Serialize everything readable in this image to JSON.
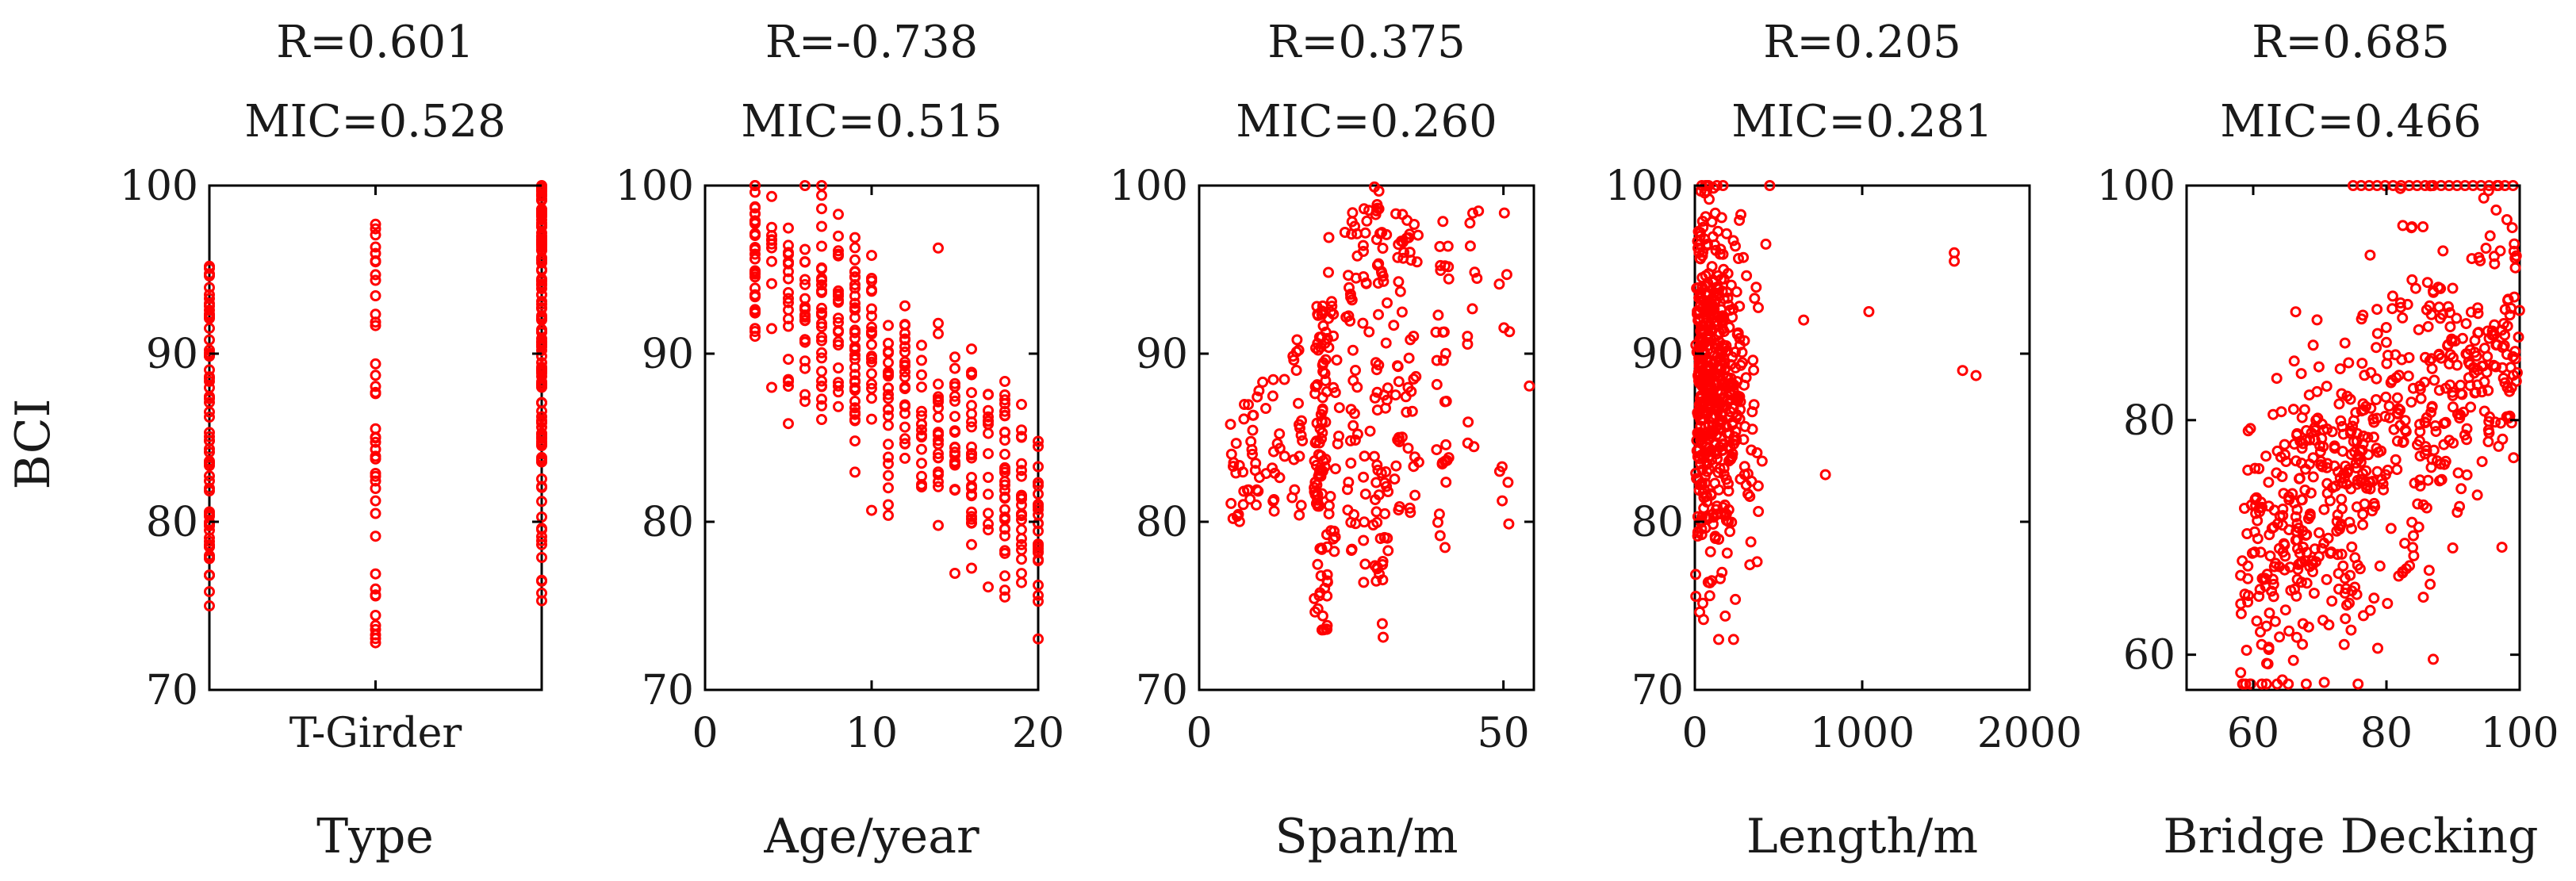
{
  "figure": {
    "shared_ylabel": "BCI",
    "marker_color": "#ff0000",
    "axis_color": "#000000"
  },
  "chart_data": [
    {
      "type": "scatter",
      "id": "type",
      "title_r": "R=0.601",
      "title_mic": "MIC=0.528",
      "xlabel": "Type",
      "ylabel": "BCI",
      "xlim": [
        0,
        2
      ],
      "ylim": [
        70,
        100
      ],
      "xticks": [
        {
          "v": 1,
          "label": "T-Girder"
        }
      ],
      "yticks": [
        {
          "v": 70,
          "label": "70"
        },
        {
          "v": 80,
          "label": "80"
        },
        {
          "v": 90,
          "label": "90"
        },
        {
          "v": 100,
          "label": "100"
        }
      ],
      "groups": [
        {
          "x": 0,
          "ymin": 75,
          "ymax": 95.2,
          "n": 70
        },
        {
          "x": 1,
          "ymin": 72.8,
          "ymax": 97.7,
          "n": 40
        },
        {
          "x": 2,
          "ymin": 75.3,
          "ymax": 100,
          "n": 120
        }
      ]
    },
    {
      "type": "scatter",
      "id": "age",
      "title_r": "R=-0.738",
      "title_mic": "MIC=0.515",
      "xlabel": "Age/year",
      "ylabel": "BCI",
      "xlim": [
        0,
        20
      ],
      "ylim": [
        70,
        100
      ],
      "xticks": [
        {
          "v": 0,
          "label": "0"
        },
        {
          "v": 10,
          "label": "10"
        },
        {
          "v": 20,
          "label": "20"
        }
      ],
      "yticks": [
        {
          "v": 70,
          "label": "70"
        },
        {
          "v": 80,
          "label": "80"
        },
        {
          "v": 90,
          "label": "90"
        },
        {
          "v": 100,
          "label": "100"
        }
      ],
      "discrete_x": [
        3,
        4,
        5,
        6,
        7,
        8,
        9,
        10,
        11,
        12,
        13,
        14,
        15,
        16,
        17,
        18,
        19,
        20
      ],
      "trend": {
        "intercept": 99,
        "slope": -0.95,
        "spread": 5.5
      },
      "n": 420
    },
    {
      "type": "scatter",
      "id": "span",
      "title_r": "R=0.375",
      "title_mic": "MIC=0.260",
      "xlabel": "Span/m",
      "ylabel": "BCI",
      "xlim": [
        0,
        55
      ],
      "ylim": [
        70,
        100
      ],
      "xticks": [
        {
          "v": 0,
          "label": "0"
        },
        {
          "v": 50,
          "label": "50"
        }
      ],
      "yticks": [
        {
          "v": 70,
          "label": "70"
        },
        {
          "v": 80,
          "label": "80"
        },
        {
          "v": 90,
          "label": "90"
        },
        {
          "v": 100,
          "label": "100"
        }
      ],
      "columns": [
        {
          "x": 6,
          "ymin": 80,
          "ymax": 86,
          "n": 12
        },
        {
          "x": 8,
          "ymin": 80,
          "ymax": 87,
          "n": 14
        },
        {
          "x": 10,
          "ymin": 81,
          "ymax": 89,
          "n": 12
        },
        {
          "x": 13,
          "ymin": 80,
          "ymax": 90,
          "n": 14
        },
        {
          "x": 16,
          "ymin": 79,
          "ymax": 95,
          "n": 18
        },
        {
          "x": 20,
          "ymin": 73.5,
          "ymax": 93,
          "n": 90
        },
        {
          "x": 22,
          "ymin": 78,
          "ymax": 97,
          "n": 25
        },
        {
          "x": 25,
          "ymin": 78,
          "ymax": 99,
          "n": 35
        },
        {
          "x": 28,
          "ymin": 76,
          "ymax": 100,
          "n": 25
        },
        {
          "x": 30,
          "ymin": 73,
          "ymax": 100,
          "n": 55
        },
        {
          "x": 33,
          "ymin": 80,
          "ymax": 99,
          "n": 25
        },
        {
          "x": 35,
          "ymin": 80,
          "ymax": 99,
          "n": 25
        },
        {
          "x": 40,
          "ymin": 77.5,
          "ymax": 98,
          "n": 30
        },
        {
          "x": 45,
          "ymin": 84,
          "ymax": 99,
          "n": 12
        },
        {
          "x": 50,
          "ymin": 77,
          "ymax": 99,
          "n": 10
        },
        {
          "x": 54,
          "ymin": 88,
          "ymax": 88.5,
          "n": 1
        }
      ]
    },
    {
      "type": "scatter",
      "id": "length",
      "title_r": "R=0.205",
      "title_mic": "MIC=0.281",
      "xlabel": "Length/m",
      "ylabel": "BCI",
      "xlim": [
        0,
        2000
      ],
      "ylim": [
        70,
        100
      ],
      "xticks": [
        {
          "v": 0,
          "label": "0"
        },
        {
          "v": 1000,
          "label": "1000"
        },
        {
          "v": 2000,
          "label": "2000"
        }
      ],
      "yticks": [
        {
          "v": 70,
          "label": "70"
        },
        {
          "v": 80,
          "label": "80"
        },
        {
          "v": 90,
          "label": "90"
        },
        {
          "v": 100,
          "label": "100"
        }
      ],
      "outliers": [
        [
          1040,
          92.5
        ],
        [
          1550,
          96
        ],
        [
          1550,
          95.5
        ],
        [
          1600,
          89
        ],
        [
          1680,
          88.7
        ],
        [
          780,
          82.8
        ],
        [
          650,
          92
        ]
      ],
      "n": 520
    },
    {
      "type": "scatter",
      "id": "decking",
      "title_r": "R=0.685",
      "title_mic": "MIC=0.466",
      "xlabel": "Bridge Decking",
      "ylabel": "BCI",
      "xlim": [
        50,
        100
      ],
      "ylim": [
        57,
        100
      ],
      "xticks": [
        {
          "v": 60,
          "label": "60"
        },
        {
          "v": 80,
          "label": "80"
        },
        {
          "v": 100,
          "label": "100"
        }
      ],
      "yticks": [
        {
          "v": 60,
          "label": "60"
        },
        {
          "v": 80,
          "label": "80"
        },
        {
          "v": 100,
          "label": "100"
        }
      ],
      "trend": {
        "intercept": 38,
        "slope": 0.5,
        "spread": 12
      },
      "n": 620
    }
  ]
}
